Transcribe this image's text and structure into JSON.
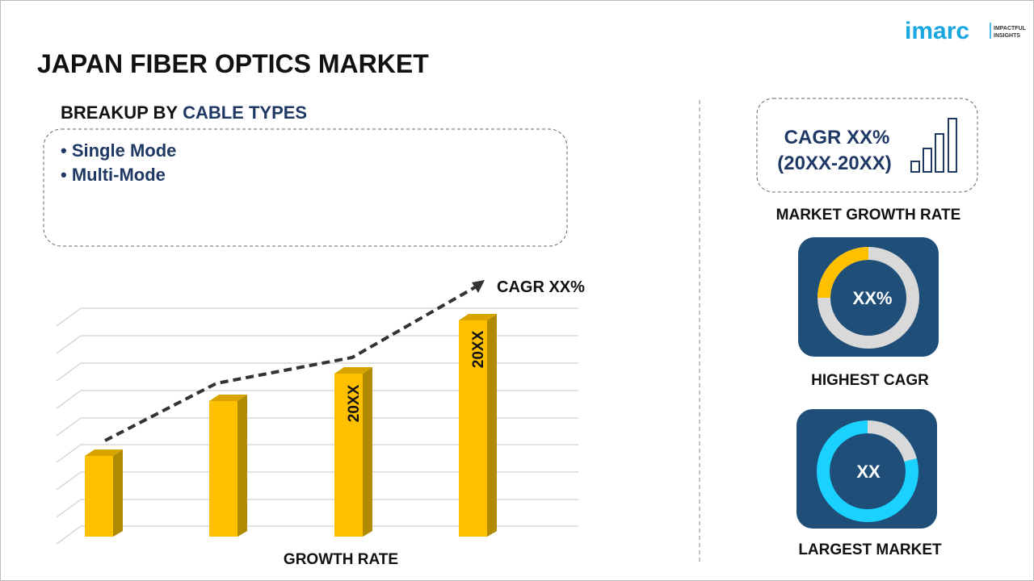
{
  "header": {
    "title": "JAPAN FIBER OPTICS MARKET",
    "logo": "imarc",
    "logo_tagline_1": "IMPACTFUL",
    "logo_tagline_2": "INSIGHTS"
  },
  "breakup": {
    "prefix": "BREAKUP BY",
    "highlight": "CABLE TYPES",
    "items": [
      "• Single Mode",
      "• Multi-Mode"
    ]
  },
  "growth_chart": {
    "trend_label": "CAGR XX%",
    "bar_labels": [
      "20XX",
      "20XX"
    ],
    "axis_label": "GROWTH RATE"
  },
  "side_panel": {
    "cagr_line_1": "CAGR XX%",
    "cagr_line_2": "(20XX-20XX)",
    "cagr_caption": "MARKET GROWTH RATE",
    "highest_value": "XX%",
    "highest_caption": "HIGHEST CAGR",
    "largest_value": "XX",
    "largest_caption": "LARGEST MARKET"
  }
}
